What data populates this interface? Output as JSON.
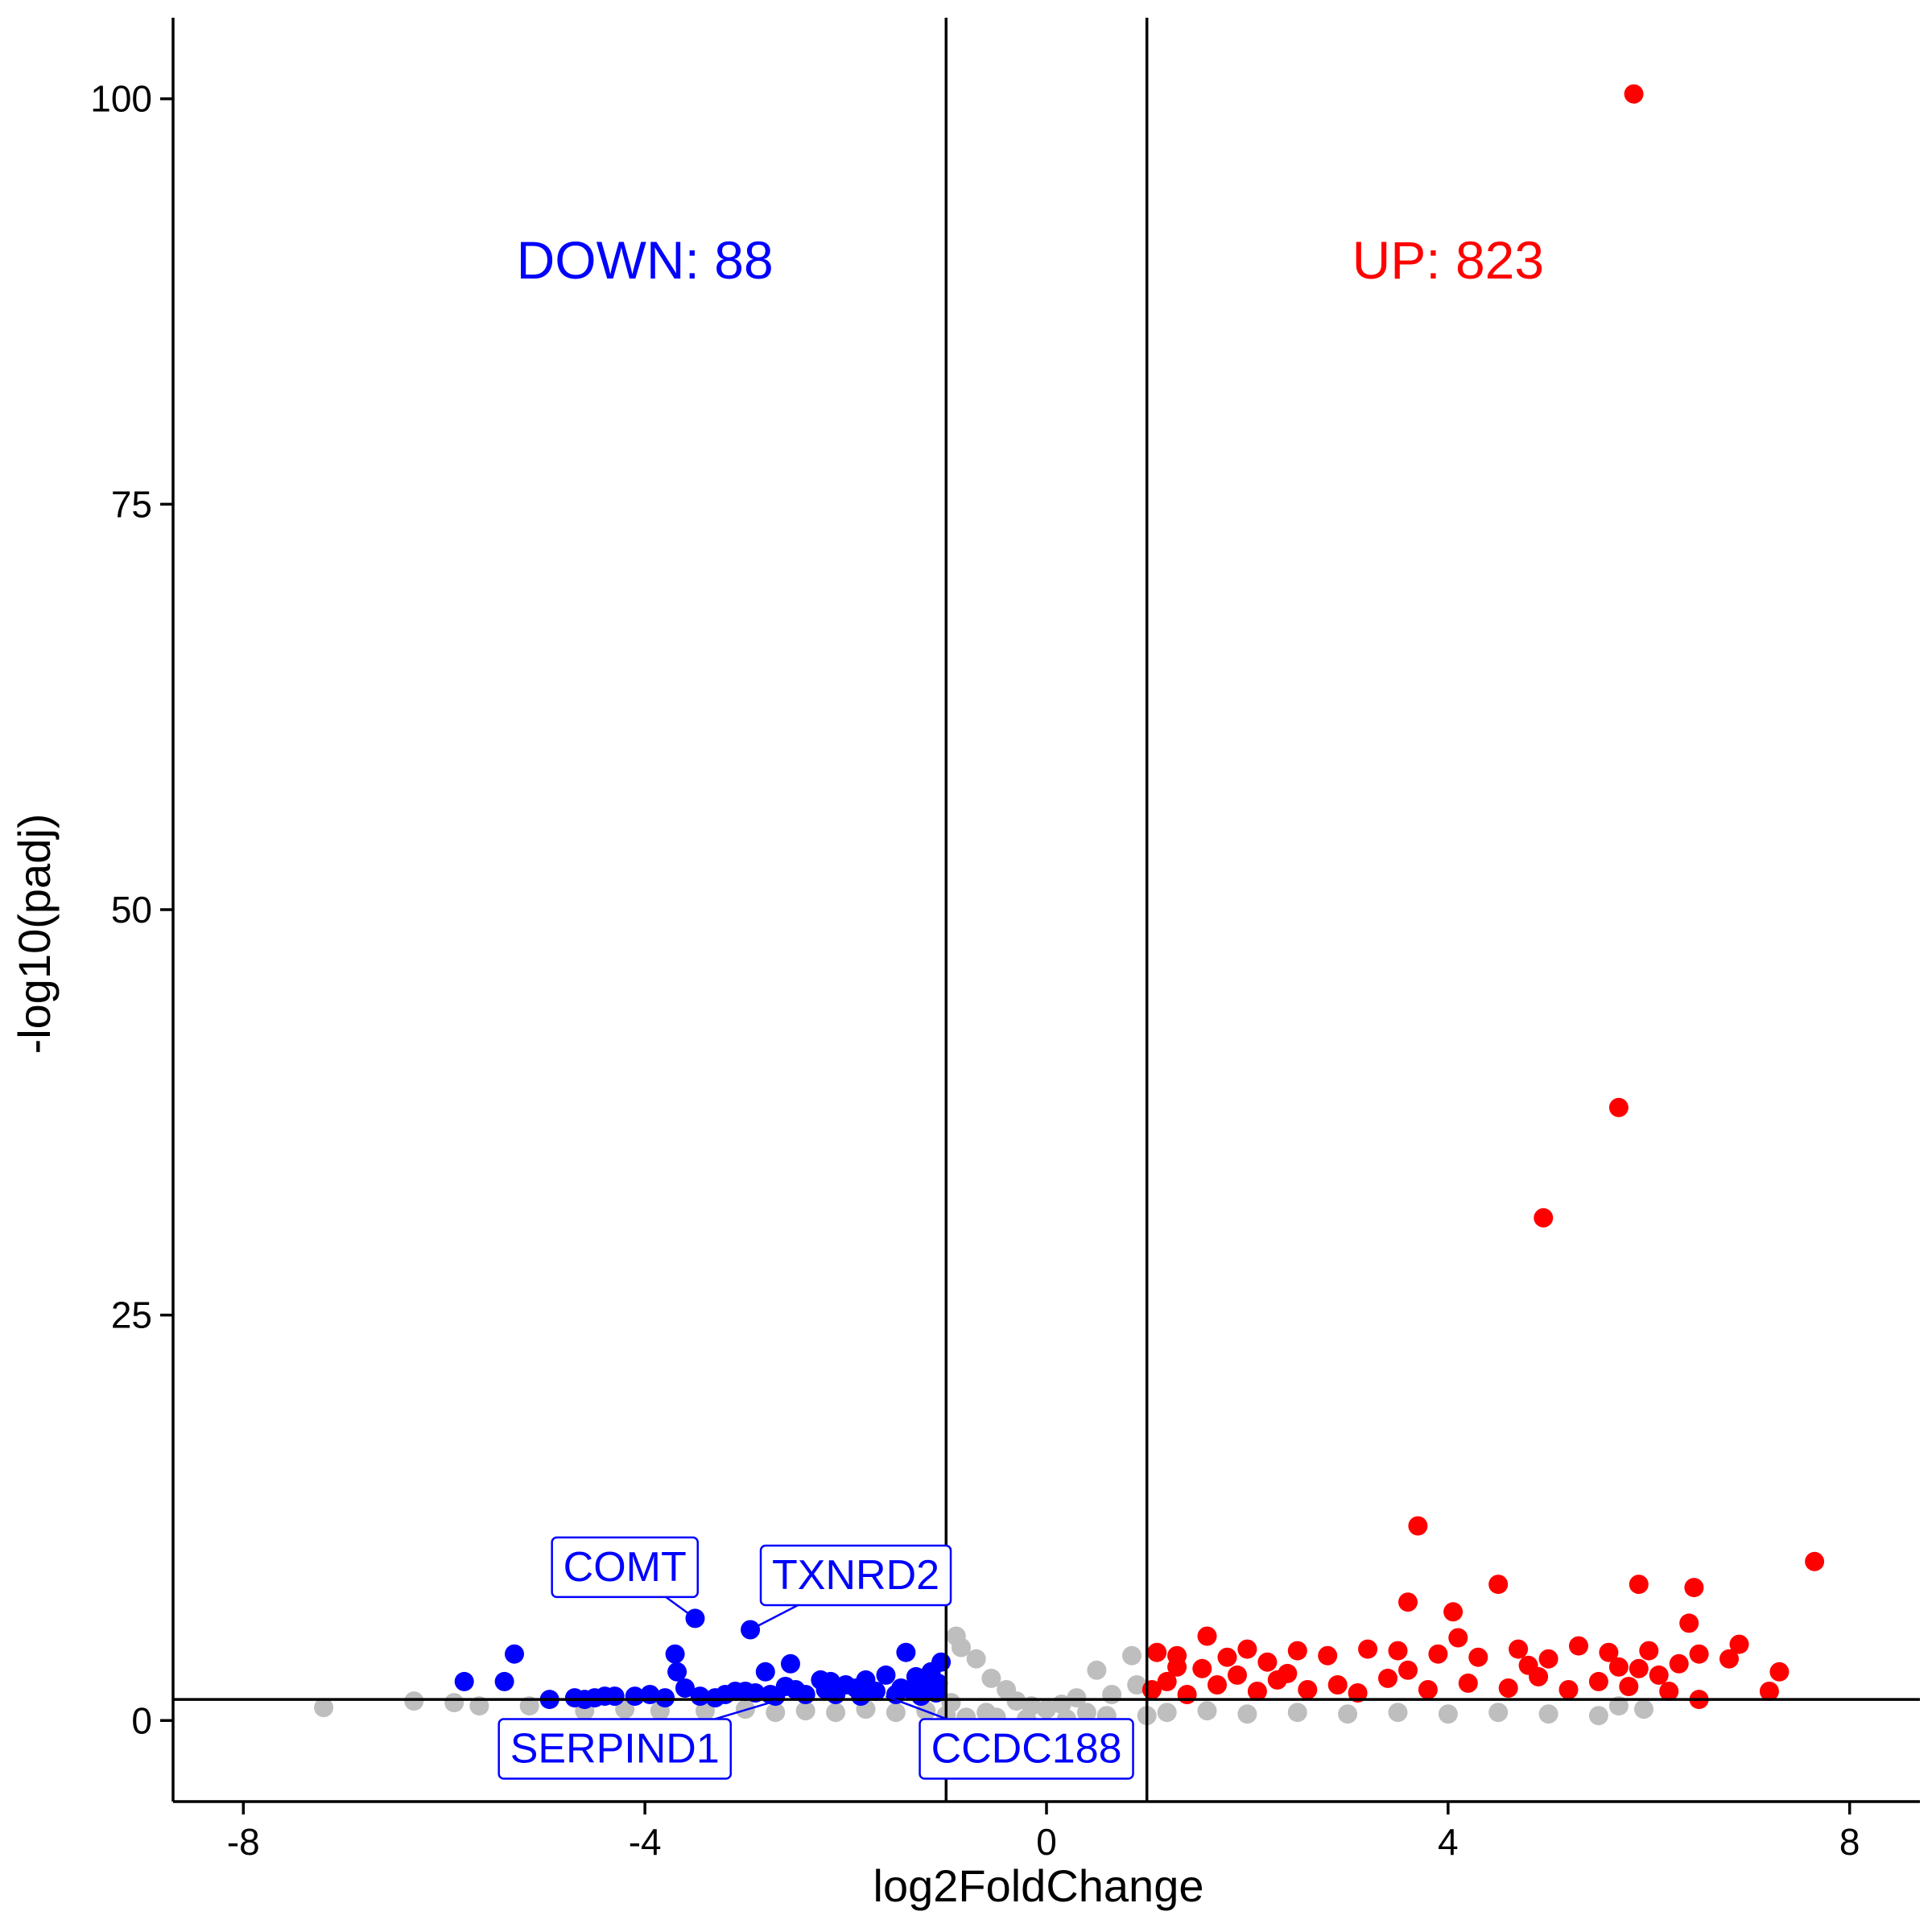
{
  "chart_data": {
    "type": "scatter",
    "title": "",
    "xlabel": "log2FoldChange",
    "ylabel": "-log10(padj)",
    "xlim": [
      -8.7,
      8.7
    ],
    "ylim": [
      -5,
      105
    ],
    "x_ticks": [
      -8,
      -4,
      0,
      4,
      8
    ],
    "x_tick_labels": [
      "-8",
      "-4",
      "0",
      "4",
      "8"
    ],
    "y_ticks": [
      0,
      25,
      50,
      75,
      100
    ],
    "y_tick_labels": [
      "0",
      "25",
      "50",
      "75",
      "100"
    ],
    "grid": false,
    "legend": "none",
    "thresholds": {
      "log2fc": [
        -1,
        1
      ],
      "neg_log10_padj": 1.3
    },
    "annotations": [
      {
        "text": "DOWN: 88",
        "x": -4.0,
        "y": 90,
        "color": "#0000ff"
      },
      {
        "text": "UP: 823",
        "x": 4.0,
        "y": 90,
        "color": "#ff0000"
      }
    ],
    "labeled_genes": [
      {
        "gene": "COMT",
        "x": -3.5,
        "y": 6.3,
        "label_x": -4.2,
        "label_y": 9.5
      },
      {
        "gene": "TXNRD2",
        "x": -2.95,
        "y": 5.6,
        "label_x": -1.9,
        "label_y": 9.0
      },
      {
        "gene": "SERPIND1",
        "x": -2.7,
        "y": 1.2,
        "label_x": -4.3,
        "label_y": -1.7
      },
      {
        "gene": "CCDC188",
        "x": -1.6,
        "y": 1.5,
        "label_x": -0.2,
        "label_y": -1.7
      }
    ],
    "series": [
      {
        "group": "DOWN",
        "color": "#0000ff",
        "points": [
          [
            -5.8,
            2.4
          ],
          [
            -5.4,
            2.4
          ],
          [
            -5.3,
            4.1
          ],
          [
            -4.95,
            1.3
          ],
          [
            -4.7,
            1.4
          ],
          [
            -4.6,
            1.3
          ],
          [
            -4.5,
            1.4
          ],
          [
            -4.4,
            1.5
          ],
          [
            -4.3,
            1.5
          ],
          [
            -4.1,
            1.5
          ],
          [
            -3.95,
            1.6
          ],
          [
            -3.8,
            1.4
          ],
          [
            -3.7,
            4.1
          ],
          [
            -3.68,
            3.0
          ],
          [
            -3.6,
            2.0
          ],
          [
            -3.5,
            6.3
          ],
          [
            -3.45,
            1.5
          ],
          [
            -3.3,
            1.4
          ],
          [
            -3.2,
            1.6
          ],
          [
            -3.1,
            1.8
          ],
          [
            -3.0,
            1.8
          ],
          [
            -2.95,
            5.6
          ],
          [
            -2.9,
            1.7
          ],
          [
            -2.8,
            3.0
          ],
          [
            -2.75,
            1.6
          ],
          [
            -2.7,
            1.5
          ],
          [
            -2.6,
            2.1
          ],
          [
            -2.55,
            3.5
          ],
          [
            -2.5,
            1.9
          ],
          [
            -2.4,
            1.6
          ],
          [
            -2.25,
            2.5
          ],
          [
            -2.2,
            1.9
          ],
          [
            -2.15,
            2.4
          ],
          [
            -2.1,
            1.6
          ],
          [
            -2.0,
            2.2
          ],
          [
            -1.9,
            2.0
          ],
          [
            -1.85,
            1.5
          ],
          [
            -1.8,
            2.5
          ],
          [
            -1.7,
            1.8
          ],
          [
            -1.6,
            2.8
          ],
          [
            -1.5,
            1.6
          ],
          [
            -1.45,
            2.0
          ],
          [
            -1.4,
            4.2
          ],
          [
            -1.35,
            1.9
          ],
          [
            -1.3,
            2.7
          ],
          [
            -1.25,
            1.5
          ],
          [
            -1.2,
            2.1
          ],
          [
            -1.15,
            3.0
          ],
          [
            -1.1,
            1.7
          ],
          [
            -1.08,
            2.3
          ],
          [
            -1.05,
            3.6
          ]
        ]
      },
      {
        "group": "UP",
        "color": "#ff0000",
        "points": [
          [
            5.85,
            100.3
          ],
          [
            5.7,
            37.8
          ],
          [
            4.95,
            31.0
          ],
          [
            3.7,
            12.0
          ],
          [
            7.65,
            9.8
          ],
          [
            5.9,
            8.4
          ],
          [
            6.45,
            8.2
          ],
          [
            4.5,
            8.4
          ],
          [
            3.6,
            7.3
          ],
          [
            4.05,
            6.7
          ],
          [
            6.4,
            6.0
          ],
          [
            4.1,
            5.1
          ],
          [
            1.6,
            5.2
          ],
          [
            5.3,
            4.6
          ],
          [
            6.0,
            4.3
          ],
          [
            6.5,
            4.1
          ],
          [
            6.9,
            4.7
          ],
          [
            7.3,
            3.0
          ],
          [
            7.2,
            1.8
          ],
          [
            6.5,
            1.3
          ],
          [
            1.1,
            4.2
          ],
          [
            1.3,
            4.0
          ],
          [
            1.55,
            3.2
          ],
          [
            1.8,
            3.9
          ],
          [
            2.0,
            4.4
          ],
          [
            2.2,
            3.6
          ],
          [
            2.5,
            4.3
          ],
          [
            2.8,
            4.0
          ],
          [
            3.2,
            4.4
          ],
          [
            3.5,
            4.3
          ],
          [
            3.9,
            4.1
          ],
          [
            4.3,
            3.9
          ],
          [
            4.7,
            4.4
          ],
          [
            5.0,
            3.8
          ],
          [
            5.6,
            4.2
          ],
          [
            5.9,
            3.2
          ],
          [
            6.2,
            1.8
          ],
          [
            6.8,
            3.8
          ],
          [
            1.05,
            1.9
          ],
          [
            1.2,
            2.4
          ],
          [
            1.4,
            1.6
          ],
          [
            1.7,
            2.2
          ],
          [
            1.9,
            2.8
          ],
          [
            2.1,
            1.8
          ],
          [
            2.3,
            2.5
          ],
          [
            2.6,
            1.9
          ],
          [
            2.9,
            2.2
          ],
          [
            3.1,
            1.7
          ],
          [
            3.4,
            2.6
          ],
          [
            3.8,
            1.9
          ],
          [
            4.2,
            2.3
          ],
          [
            4.6,
            2.0
          ],
          [
            4.9,
            2.7
          ],
          [
            5.2,
            1.9
          ],
          [
            5.5,
            2.4
          ],
          [
            5.8,
            2.1
          ],
          [
            6.1,
            2.8
          ],
          [
            1.3,
            3.3
          ],
          [
            2.4,
            2.9
          ],
          [
            3.6,
            3.1
          ],
          [
            4.8,
            3.4
          ],
          [
            5.7,
            3.3
          ],
          [
            6.3,
            3.5
          ]
        ]
      },
      {
        "group": "NS",
        "color": "#bebebe",
        "points": [
          [
            -7.2,
            0.8
          ],
          [
            -6.3,
            1.2
          ],
          [
            -5.9,
            1.1
          ],
          [
            -5.65,
            0.9
          ],
          [
            -5.15,
            0.9
          ],
          [
            -4.6,
            0.6
          ],
          [
            -4.2,
            0.7
          ],
          [
            -3.85,
            0.6
          ],
          [
            -3.4,
            0.6
          ],
          [
            -3.0,
            0.7
          ],
          [
            -2.7,
            0.5
          ],
          [
            -2.4,
            0.6
          ],
          [
            -2.1,
            0.5
          ],
          [
            -1.8,
            0.7
          ],
          [
            -1.5,
            0.5
          ],
          [
            -1.2,
            0.6
          ],
          [
            -0.9,
            5.2
          ],
          [
            -0.85,
            4.5
          ],
          [
            -0.7,
            3.8
          ],
          [
            -0.55,
            2.6
          ],
          [
            -0.4,
            1.9
          ],
          [
            -0.3,
            1.2
          ],
          [
            -0.15,
            0.9
          ],
          [
            0.0,
            0.7
          ],
          [
            0.15,
            1.0
          ],
          [
            0.3,
            1.4
          ],
          [
            0.5,
            3.1
          ],
          [
            0.65,
            1.6
          ],
          [
            0.85,
            4.0
          ],
          [
            0.9,
            2.2
          ],
          [
            -0.95,
            1.1
          ],
          [
            -0.6,
            0.5
          ],
          [
            0.4,
            0.5
          ],
          [
            1.2,
            0.5
          ],
          [
            1.6,
            0.6
          ],
          [
            2.0,
            0.4
          ],
          [
            2.5,
            0.5
          ],
          [
            3.0,
            0.4
          ],
          [
            3.5,
            0.5
          ],
          [
            4.0,
            0.4
          ],
          [
            4.5,
            0.5
          ],
          [
            5.0,
            0.4
          ],
          [
            5.5,
            0.3
          ],
          [
            5.7,
            0.9
          ],
          [
            5.95,
            0.7
          ],
          [
            -0.8,
            0.2
          ],
          [
            -0.5,
            0.2
          ],
          [
            -0.2,
            0.1
          ],
          [
            0.2,
            0.1
          ],
          [
            0.6,
            0.3
          ],
          [
            -1.0,
            0.3
          ],
          [
            1.0,
            0.3
          ]
        ]
      }
    ]
  }
}
